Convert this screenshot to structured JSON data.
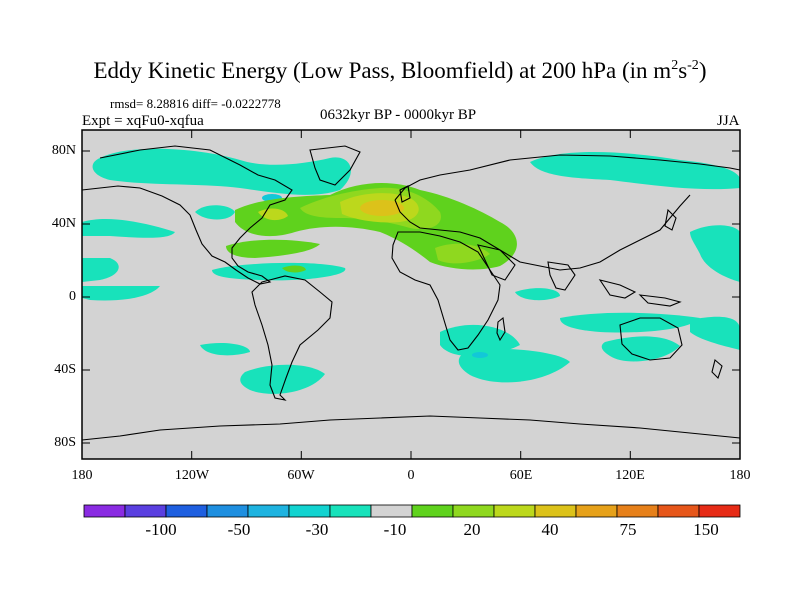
{
  "title": {
    "main": "Eddy Kinetic Energy (Low Pass, Bloomfield) at 200 hPa (in m",
    "sup1": "2",
    "mid": "s",
    "sup2": "-2",
    "close": ")"
  },
  "stats": "rmsd= 8.28816 diff= -0.0222778",
  "experiment": "Expt = xqFu0-xqfua",
  "period": "0632kyr BP - 0000kyr BP",
  "season": "JJA",
  "axes": {
    "y_ticks": [
      "80N",
      "40N",
      "0",
      "40S",
      "80S"
    ],
    "x_ticks": [
      "180",
      "120W",
      "60W",
      "0",
      "60E",
      "120E",
      "180"
    ]
  },
  "colorbar": {
    "colors": [
      "#8a2be2",
      "#5a3fe0",
      "#1e5fe0",
      "#1e8fe0",
      "#1eb3e0",
      "#12d3d0",
      "#18e2bb",
      "#d3d3d3",
      "#5fd21d",
      "#8fd81f",
      "#bcd81c",
      "#dcc21a",
      "#e6a11a",
      "#e6801a",
      "#e6561a",
      "#e62b16"
    ],
    "labels": [
      "-100",
      "-50",
      "-30",
      "-10",
      "20",
      "40",
      "75",
      "150"
    ],
    "missing_color": "#d3d3d3"
  }
}
